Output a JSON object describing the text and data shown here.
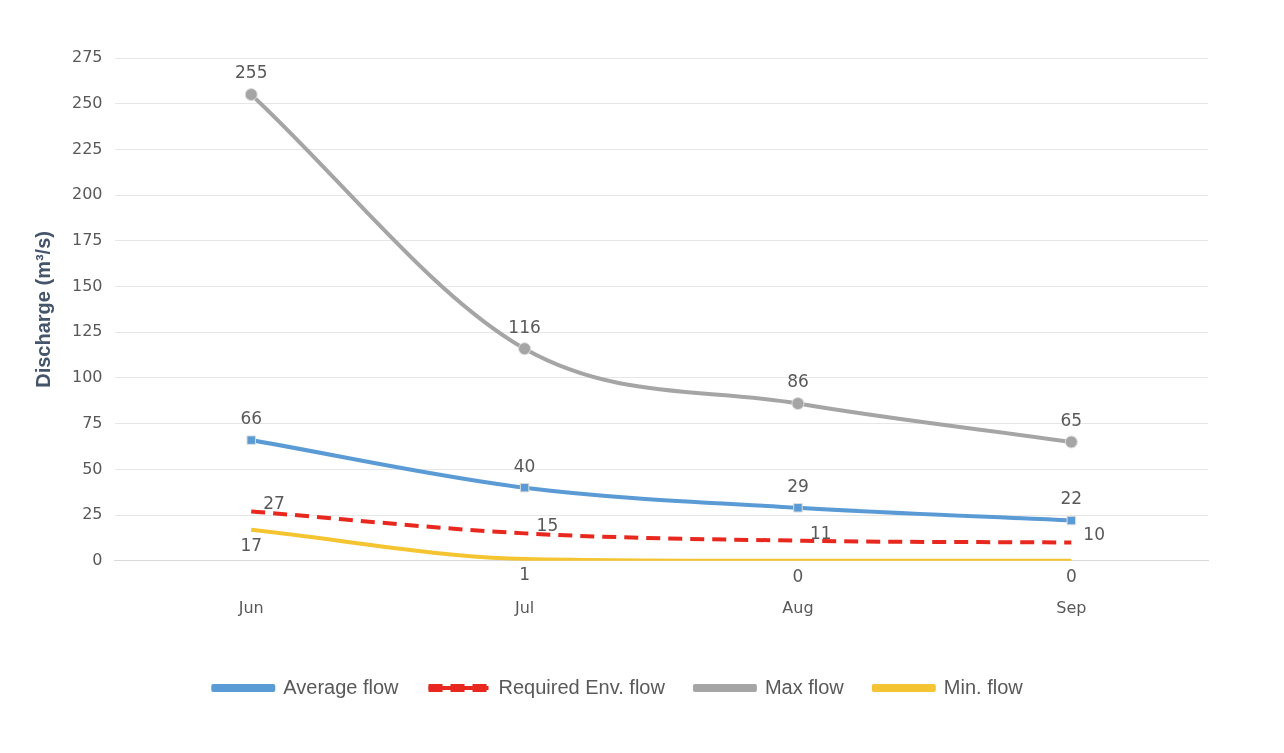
{
  "chart_data": {
    "type": "line",
    "ylabel": "Discharge (m³/s)",
    "categories": [
      "Jun",
      "Jul",
      "Aug",
      "Sep"
    ],
    "series": [
      {
        "name": "Average flow",
        "color": "#5b9bd5",
        "values": [
          66,
          40,
          29,
          22
        ],
        "marker": "square",
        "line_style": "solid"
      },
      {
        "name": "Required Env. flow",
        "color": "#e8281e",
        "values": [
          27,
          15,
          11,
          10
        ],
        "marker": "none",
        "line_style": "dashed"
      },
      {
        "name": "Max flow",
        "color": "#a5a5a5",
        "values": [
          255,
          116,
          86,
          65
        ],
        "marker": "circle",
        "line_style": "solid"
      },
      {
        "name": "Min. flow",
        "color": "#f5c431",
        "values": [
          17,
          1,
          0,
          0
        ],
        "marker": "none",
        "line_style": "solid"
      }
    ],
    "ylim": [
      0,
      275
    ],
    "yticks": [
      0,
      25,
      50,
      75,
      100,
      125,
      150,
      175,
      200,
      225,
      250,
      275
    ],
    "grid": "y",
    "legend": "bottom",
    "data_labels": true
  }
}
